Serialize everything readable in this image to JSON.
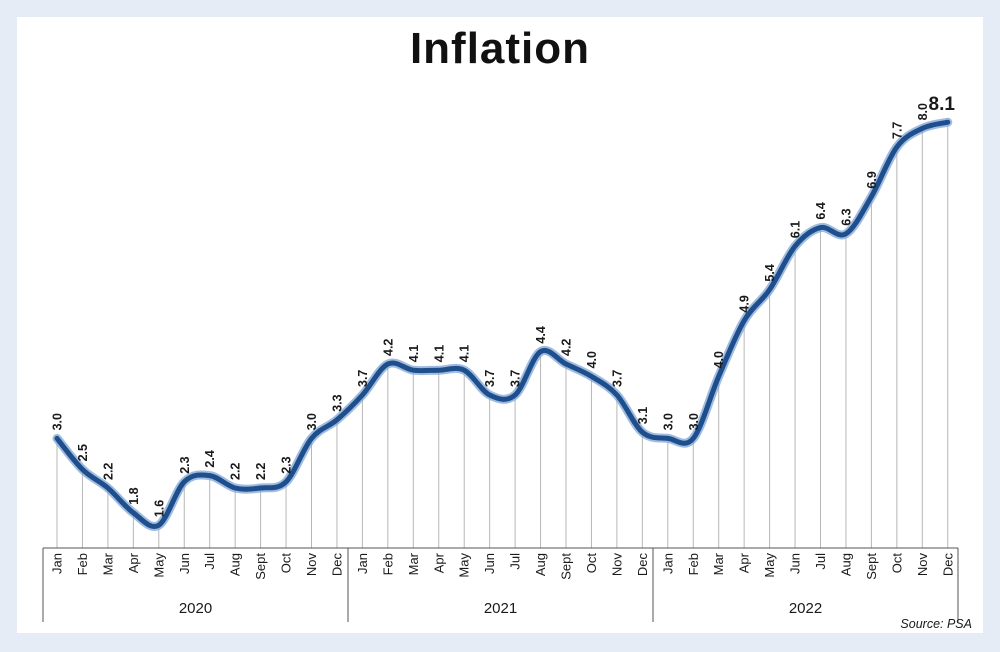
{
  "chart_data": {
    "type": "line",
    "title": "Inflation",
    "source": "Source: PSA",
    "years": [
      "2020",
      "2021",
      "2022"
    ],
    "categories": [
      "Jan",
      "Feb",
      "Mar",
      "Apr",
      "May",
      "Jun",
      "Jul",
      "Aug",
      "Sept",
      "Oct",
      "Nov",
      "Dec",
      "Jan",
      "Feb",
      "Mar",
      "Apr",
      "May",
      "Jun",
      "Jul",
      "Aug",
      "Sept",
      "Oct",
      "Nov",
      "Dec",
      "Jan",
      "Feb",
      "Mar",
      "Apr",
      "May",
      "Jun",
      "Jul",
      "Aug",
      "Sept",
      "Oct",
      "Nov",
      "Dec"
    ],
    "values": [
      3.0,
      2.5,
      2.2,
      1.8,
      1.6,
      2.3,
      2.4,
      2.2,
      2.2,
      2.3,
      3.0,
      3.3,
      3.7,
      4.2,
      4.1,
      4.1,
      4.1,
      3.7,
      3.7,
      4.4,
      4.2,
      4.0,
      3.7,
      3.1,
      3.0,
      3.0,
      4.0,
      4.9,
      5.4,
      6.1,
      6.4,
      6.3,
      6.9,
      7.7,
      8.0,
      8.1
    ],
    "labels": [
      "3.0",
      "2.5",
      "2.2",
      "1.8",
      "1.6",
      "2.3",
      "2.4",
      "2.2",
      "2.2",
      "2.3",
      "3.0",
      "3.3",
      "3.7",
      "4.2",
      "4.1",
      "4.1",
      "4.1",
      "3.7",
      "3.7",
      "4.4",
      "4.2",
      "4.0",
      "3.7",
      "3.1",
      "3.0",
      "3.0",
      "4.0",
      "4.9",
      "5.4",
      "6.1",
      "6.4",
      "6.3",
      "6.9",
      "7.7",
      "8.0",
      "8.1"
    ],
    "line_color": "#1f4e8c",
    "grid": true,
    "legend": false
  }
}
